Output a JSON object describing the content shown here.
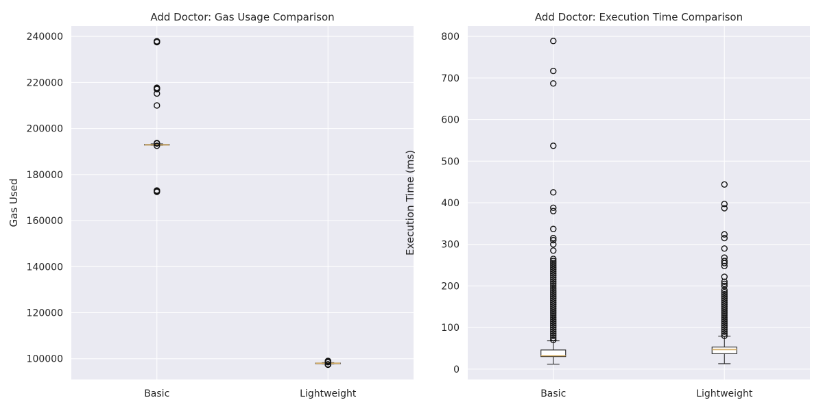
{
  "chart_data": [
    {
      "type": "box",
      "title": "Add Doctor: Gas Usage Comparison",
      "xlabel": "",
      "ylabel": "Gas Used",
      "ylim": [
        91000,
        244500
      ],
      "yticks": [
        100000,
        120000,
        140000,
        160000,
        180000,
        200000,
        220000,
        240000
      ],
      "grid": true,
      "categories": [
        "Basic",
        "Lightweight"
      ],
      "boxes": [
        {
          "name": "Basic",
          "whisker_low": 192700,
          "q1": 192800,
          "median": 192900,
          "q3": 193100,
          "whisker_high": 193300,
          "fliers": [
            237500,
            237600,
            237700,
            237800,
            237900,
            217100,
            217300,
            217500,
            217700,
            215200,
            210000,
            193500,
            193700,
            192500,
            172500,
            172700,
            172900,
            173100
          ]
        },
        {
          "name": "Lightweight",
          "whisker_low": 97800,
          "q1": 97950,
          "median": 98050,
          "q3": 98150,
          "whisker_high": 98300,
          "fliers": [
            97400,
            97500,
            97600,
            98500,
            98700,
            98900,
            99100
          ]
        }
      ]
    },
    {
      "type": "box",
      "title": "Add Doctor: Execution Time Comparison",
      "xlabel": "",
      "ylabel": "Execution Time (ms)",
      "ylim": [
        -25,
        825
      ],
      "yticks": [
        0,
        100,
        200,
        300,
        400,
        500,
        600,
        700,
        800
      ],
      "grid": true,
      "categories": [
        "Basic",
        "Lightweight"
      ],
      "boxes": [
        {
          "name": "Basic",
          "whisker_low": 12,
          "q1": 30,
          "median": 32,
          "q3": 46,
          "whisker_high": 68,
          "fliers": [
            70,
            75,
            80,
            85,
            90,
            95,
            100,
            105,
            110,
            115,
            120,
            125,
            130,
            135,
            140,
            145,
            150,
            155,
            160,
            165,
            170,
            175,
            180,
            185,
            190,
            195,
            200,
            205,
            210,
            215,
            220,
            225,
            230,
            235,
            240,
            245,
            250,
            255,
            260,
            265,
            285,
            300,
            310,
            315,
            337,
            380,
            388,
            425,
            537,
            687,
            717,
            789
          ]
        },
        {
          "name": "Lightweight",
          "whisker_low": 13,
          "q1": 37,
          "median": 47,
          "q3": 53,
          "whisker_high": 79,
          "fliers": [
            80,
            85,
            90,
            95,
            100,
            105,
            110,
            115,
            120,
            125,
            130,
            135,
            140,
            145,
            150,
            155,
            160,
            165,
            170,
            175,
            180,
            185,
            190,
            200,
            205,
            210,
            222,
            248,
            255,
            260,
            268,
            290,
            315,
            324,
            387,
            397,
            444
          ]
        }
      ]
    }
  ]
}
